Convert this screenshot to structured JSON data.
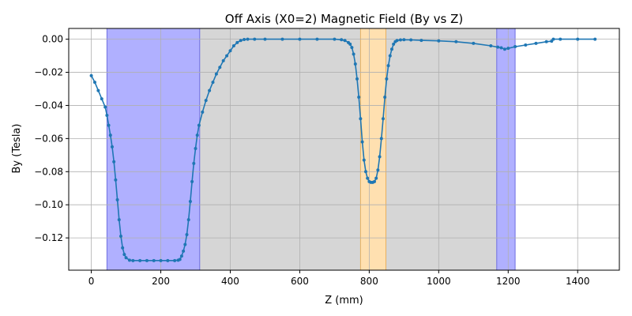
{
  "chart_data": {
    "type": "line",
    "title": "Off Axis (X0=2) Magnetic Field (By vs Z)",
    "xlabel": "Z (mm)",
    "ylabel": "By (Tesla)",
    "xlim": [
      -65,
      1520
    ],
    "ylim": [
      -0.1395,
      0.0065
    ],
    "grid": true,
    "xticks": [
      0,
      200,
      400,
      600,
      800,
      1000,
      1200,
      1400
    ],
    "xtick_labels": [
      "0",
      "200",
      "400",
      "600",
      "800",
      "1000",
      "1200",
      "1400"
    ],
    "yticks": [
      0.0,
      -0.02,
      -0.04,
      -0.06,
      -0.08,
      -0.1,
      -0.12
    ],
    "ytick_labels": [
      "0.00",
      "−0.02",
      "−0.04",
      "−0.06",
      "−0.08",
      "−0.10",
      "−0.12"
    ],
    "regions": [
      {
        "x0": 312,
        "x1": 1167,
        "color": "#d6d6d6",
        "kind": "gray"
      },
      {
        "x0": 45,
        "x1": 312,
        "color": "#b0b0ff",
        "kind": "magnet"
      },
      {
        "x0": 775,
        "x1": 848,
        "color": "#ffe0b0",
        "kind": "quad"
      },
      {
        "x0": 1167,
        "x1": 1220,
        "color": "#b0b0ff",
        "kind": "magnet"
      }
    ],
    "colors": {
      "line": "#1f77b4",
      "grid": "#b0b0b0"
    },
    "series": [
      {
        "x": [
          0,
          10,
          20,
          30,
          40,
          45,
          50,
          55,
          60,
          65,
          70,
          75,
          80,
          85,
          90,
          95,
          100,
          110,
          120,
          140,
          160,
          180,
          200,
          220,
          240,
          250,
          255,
          260,
          265,
          270,
          275,
          280,
          285,
          290,
          295,
          300,
          305,
          310,
          320,
          330,
          340,
          350,
          360,
          370,
          380,
          390,
          400,
          410,
          420,
          430,
          440,
          450,
          470,
          500,
          550,
          600,
          650,
          700,
          720,
          730,
          740,
          745,
          750,
          755,
          760,
          765,
          770,
          775,
          780,
          785,
          790,
          795,
          800,
          805,
          810,
          815,
          820,
          825,
          830,
          835,
          840,
          845,
          850,
          855,
          860,
          865,
          870,
          875,
          880,
          890,
          900,
          920,
          950,
          1000,
          1050,
          1100,
          1150,
          1170,
          1180,
          1190,
          1200,
          1220,
          1250,
          1280,
          1310,
          1325,
          1330,
          1350,
          1400,
          1450
        ],
        "y": [
          -0.022,
          -0.026,
          -0.031,
          -0.036,
          -0.041,
          -0.046,
          -0.052,
          -0.058,
          -0.065,
          -0.074,
          -0.085,
          -0.097,
          -0.109,
          -0.119,
          -0.126,
          -0.13,
          -0.132,
          -0.1335,
          -0.1337,
          -0.1337,
          -0.1337,
          -0.1337,
          -0.1337,
          -0.1337,
          -0.1337,
          -0.1335,
          -0.133,
          -0.131,
          -0.128,
          -0.124,
          -0.118,
          -0.109,
          -0.098,
          -0.086,
          -0.075,
          -0.066,
          -0.058,
          -0.052,
          -0.044,
          -0.037,
          -0.031,
          -0.026,
          -0.021,
          -0.017,
          -0.013,
          -0.01,
          -0.007,
          -0.004,
          -0.002,
          -0.0008,
          -0.0002,
          0.0,
          0.0,
          0.0,
          0.0,
          0.0,
          0.0,
          0.0,
          -0.0003,
          -0.0008,
          -0.002,
          -0.003,
          -0.005,
          -0.009,
          -0.015,
          -0.024,
          -0.035,
          -0.048,
          -0.062,
          -0.073,
          -0.08,
          -0.084,
          -0.086,
          -0.0865,
          -0.0865,
          -0.086,
          -0.084,
          -0.079,
          -0.071,
          -0.06,
          -0.048,
          -0.035,
          -0.024,
          -0.016,
          -0.01,
          -0.006,
          -0.003,
          -0.0015,
          -0.0008,
          -0.0004,
          -0.0003,
          -0.0004,
          -0.0007,
          -0.001,
          -0.0015,
          -0.0025,
          -0.004,
          -0.0048,
          -0.0052,
          -0.006,
          -0.0055,
          -0.0045,
          -0.0035,
          -0.0025,
          -0.0015,
          -0.0012,
          0.0,
          0.0,
          0.0,
          0.0
        ]
      }
    ]
  }
}
